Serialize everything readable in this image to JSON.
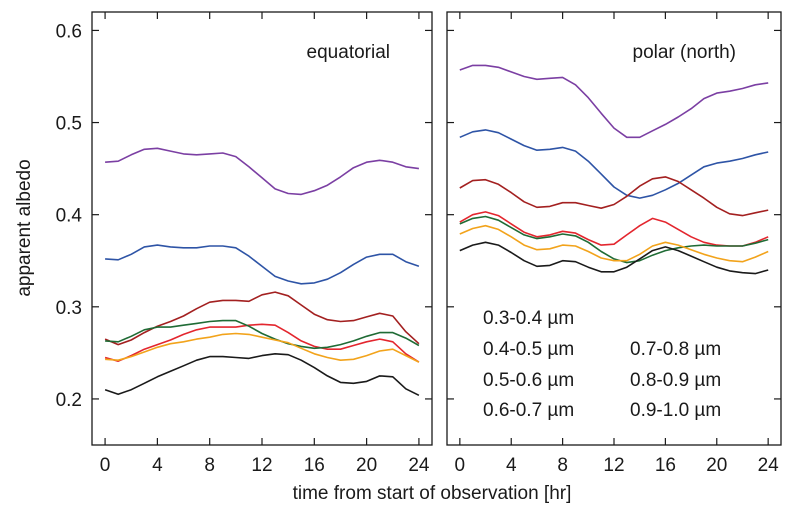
{
  "chart_data": [
    {
      "type": "line",
      "title": "equatorial",
      "xlabel": "time from start of observation [hr]",
      "ylabel": "apparent albedo",
      "xlim": [
        -1,
        25
      ],
      "ylim": [
        0.15,
        0.62
      ],
      "xticks": [
        0,
        4,
        8,
        12,
        16,
        20,
        24
      ],
      "yticks": [
        0.2,
        0.3,
        0.4,
        0.5,
        0.6
      ],
      "x": [
        0,
        1,
        2,
        3,
        4,
        5,
        6,
        7,
        8,
        9,
        10,
        11,
        12,
        13,
        14,
        15,
        16,
        17,
        18,
        19,
        20,
        21,
        22,
        23,
        24
      ],
      "series": [
        {
          "name": "0.3-0.4 µm",
          "color": "#7b3fa3",
          "values": [
            0.457,
            0.458,
            0.465,
            0.471,
            0.472,
            0.469,
            0.466,
            0.465,
            0.466,
            0.467,
            0.463,
            0.452,
            0.44,
            0.428,
            0.423,
            0.422,
            0.426,
            0.432,
            0.441,
            0.451,
            0.457,
            0.459,
            0.457,
            0.452,
            0.45
          ]
        },
        {
          "name": "0.4-0.5 µm",
          "color": "#2e54a6",
          "values": [
            0.352,
            0.351,
            0.357,
            0.365,
            0.367,
            0.365,
            0.364,
            0.364,
            0.366,
            0.366,
            0.364,
            0.355,
            0.344,
            0.333,
            0.328,
            0.325,
            0.326,
            0.33,
            0.337,
            0.346,
            0.354,
            0.357,
            0.357,
            0.349,
            0.344
          ]
        },
        {
          "name": "0.7-0.8 µm",
          "color": "#e3262e",
          "values": [
            0.245,
            0.241,
            0.247,
            0.254,
            0.259,
            0.264,
            0.27,
            0.275,
            0.278,
            0.278,
            0.278,
            0.28,
            0.281,
            0.28,
            0.272,
            0.263,
            0.257,
            0.254,
            0.254,
            0.258,
            0.262,
            0.265,
            0.262,
            0.249,
            0.24
          ]
        },
        {
          "name": "0.8-0.9 µm",
          "color": "#a32020",
          "values": [
            0.265,
            0.259,
            0.264,
            0.272,
            0.279,
            0.284,
            0.29,
            0.298,
            0.305,
            0.307,
            0.307,
            0.306,
            0.313,
            0.316,
            0.312,
            0.302,
            0.292,
            0.286,
            0.284,
            0.285,
            0.289,
            0.293,
            0.29,
            0.273,
            0.26
          ]
        },
        {
          "name": "0.5-0.6 µm",
          "color": "#1f6b35",
          "values": [
            0.263,
            0.262,
            0.268,
            0.275,
            0.278,
            0.278,
            0.28,
            0.282,
            0.284,
            0.285,
            0.285,
            0.279,
            0.271,
            0.265,
            0.26,
            0.257,
            0.255,
            0.256,
            0.259,
            0.263,
            0.268,
            0.272,
            0.272,
            0.266,
            0.258
          ]
        },
        {
          "name": "0.6-0.7 µm",
          "color": "#f2a31b",
          "values": [
            0.243,
            0.242,
            0.246,
            0.251,
            0.256,
            0.26,
            0.262,
            0.265,
            0.267,
            0.27,
            0.271,
            0.27,
            0.267,
            0.264,
            0.261,
            0.255,
            0.249,
            0.245,
            0.242,
            0.243,
            0.247,
            0.252,
            0.254,
            0.247,
            0.24
          ]
        },
        {
          "name": "0.9-1.0 µm",
          "color": "#1a1a1a",
          "values": [
            0.21,
            0.205,
            0.21,
            0.217,
            0.224,
            0.23,
            0.236,
            0.242,
            0.246,
            0.246,
            0.245,
            0.244,
            0.247,
            0.249,
            0.248,
            0.242,
            0.234,
            0.225,
            0.218,
            0.217,
            0.219,
            0.225,
            0.224,
            0.211,
            0.204
          ]
        }
      ]
    },
    {
      "type": "line",
      "title": "polar (north)",
      "xlabel": "time from start of observation [hr]",
      "ylim": [
        0.15,
        0.62
      ],
      "xlim": [
        -1,
        25
      ],
      "xticks": [
        0,
        4,
        8,
        12,
        16,
        20,
        24
      ],
      "x": [
        0,
        1,
        2,
        3,
        4,
        5,
        6,
        7,
        8,
        9,
        10,
        11,
        12,
        13,
        14,
        15,
        16,
        17,
        18,
        19,
        20,
        21,
        22,
        23,
        24
      ],
      "series": [
        {
          "name": "0.3-0.4 µm",
          "color": "#7b3fa3",
          "values": [
            0.557,
            0.562,
            0.562,
            0.56,
            0.555,
            0.55,
            0.547,
            0.548,
            0.549,
            0.541,
            0.527,
            0.51,
            0.494,
            0.484,
            0.484,
            0.491,
            0.498,
            0.506,
            0.515,
            0.526,
            0.532,
            0.534,
            0.537,
            0.541,
            0.543
          ]
        },
        {
          "name": "0.4-0.5 µm",
          "color": "#2e54a6",
          "values": [
            0.484,
            0.49,
            0.492,
            0.489,
            0.482,
            0.475,
            0.47,
            0.471,
            0.473,
            0.469,
            0.458,
            0.444,
            0.43,
            0.421,
            0.418,
            0.421,
            0.427,
            0.434,
            0.443,
            0.452,
            0.456,
            0.458,
            0.461,
            0.465,
            0.468
          ]
        },
        {
          "name": "0.7-0.8 µm",
          "color": "#e3262e",
          "values": [
            0.392,
            0.4,
            0.403,
            0.399,
            0.39,
            0.381,
            0.376,
            0.378,
            0.382,
            0.38,
            0.373,
            0.367,
            0.368,
            0.378,
            0.388,
            0.396,
            0.392,
            0.384,
            0.376,
            0.37,
            0.367,
            0.366,
            0.366,
            0.37,
            0.376
          ]
        },
        {
          "name": "0.8-0.9 µm",
          "color": "#a32020",
          "values": [
            0.429,
            0.437,
            0.438,
            0.433,
            0.424,
            0.414,
            0.408,
            0.409,
            0.413,
            0.413,
            0.41,
            0.407,
            0.411,
            0.42,
            0.431,
            0.439,
            0.441,
            0.436,
            0.427,
            0.418,
            0.408,
            0.401,
            0.399,
            0.402,
            0.405
          ]
        },
        {
          "name": "0.5-0.6 µm",
          "color": "#1f6b35",
          "values": [
            0.39,
            0.396,
            0.398,
            0.394,
            0.386,
            0.378,
            0.374,
            0.376,
            0.379,
            0.377,
            0.37,
            0.36,
            0.352,
            0.348,
            0.35,
            0.356,
            0.361,
            0.364,
            0.366,
            0.367,
            0.366,
            0.366,
            0.366,
            0.369,
            0.373
          ]
        },
        {
          "name": "0.6-0.7 µm",
          "color": "#f2a31b",
          "values": [
            0.379,
            0.385,
            0.388,
            0.384,
            0.376,
            0.367,
            0.362,
            0.363,
            0.367,
            0.366,
            0.36,
            0.353,
            0.35,
            0.35,
            0.357,
            0.366,
            0.37,
            0.367,
            0.362,
            0.357,
            0.353,
            0.35,
            0.349,
            0.354,
            0.36
          ]
        },
        {
          "name": "0.9-1.0 µm",
          "color": "#1a1a1a",
          "values": [
            0.361,
            0.367,
            0.37,
            0.367,
            0.359,
            0.35,
            0.344,
            0.345,
            0.35,
            0.349,
            0.343,
            0.338,
            0.338,
            0.343,
            0.352,
            0.361,
            0.365,
            0.361,
            0.355,
            0.349,
            0.343,
            0.339,
            0.337,
            0.336,
            0.34
          ]
        }
      ]
    }
  ],
  "legend": {
    "left": [
      {
        "label": "0.3-0.4 µm",
        "color": "#7b3fa3"
      },
      {
        "label": "0.4-0.5 µm",
        "color": "#2e54a6"
      },
      {
        "label": "0.5-0.6 µm",
        "color": "#1f6b35"
      },
      {
        "label": "0.6-0.7 µm",
        "color": "#f2a31b"
      }
    ],
    "right": [
      {
        "label": "0.7-0.8 µm",
        "color": "#e3262e"
      },
      {
        "label": "0.8-0.9 µm",
        "color": "#a32020"
      },
      {
        "label": "0.9-1.0 µm",
        "color": "#1a1a1a"
      }
    ]
  }
}
